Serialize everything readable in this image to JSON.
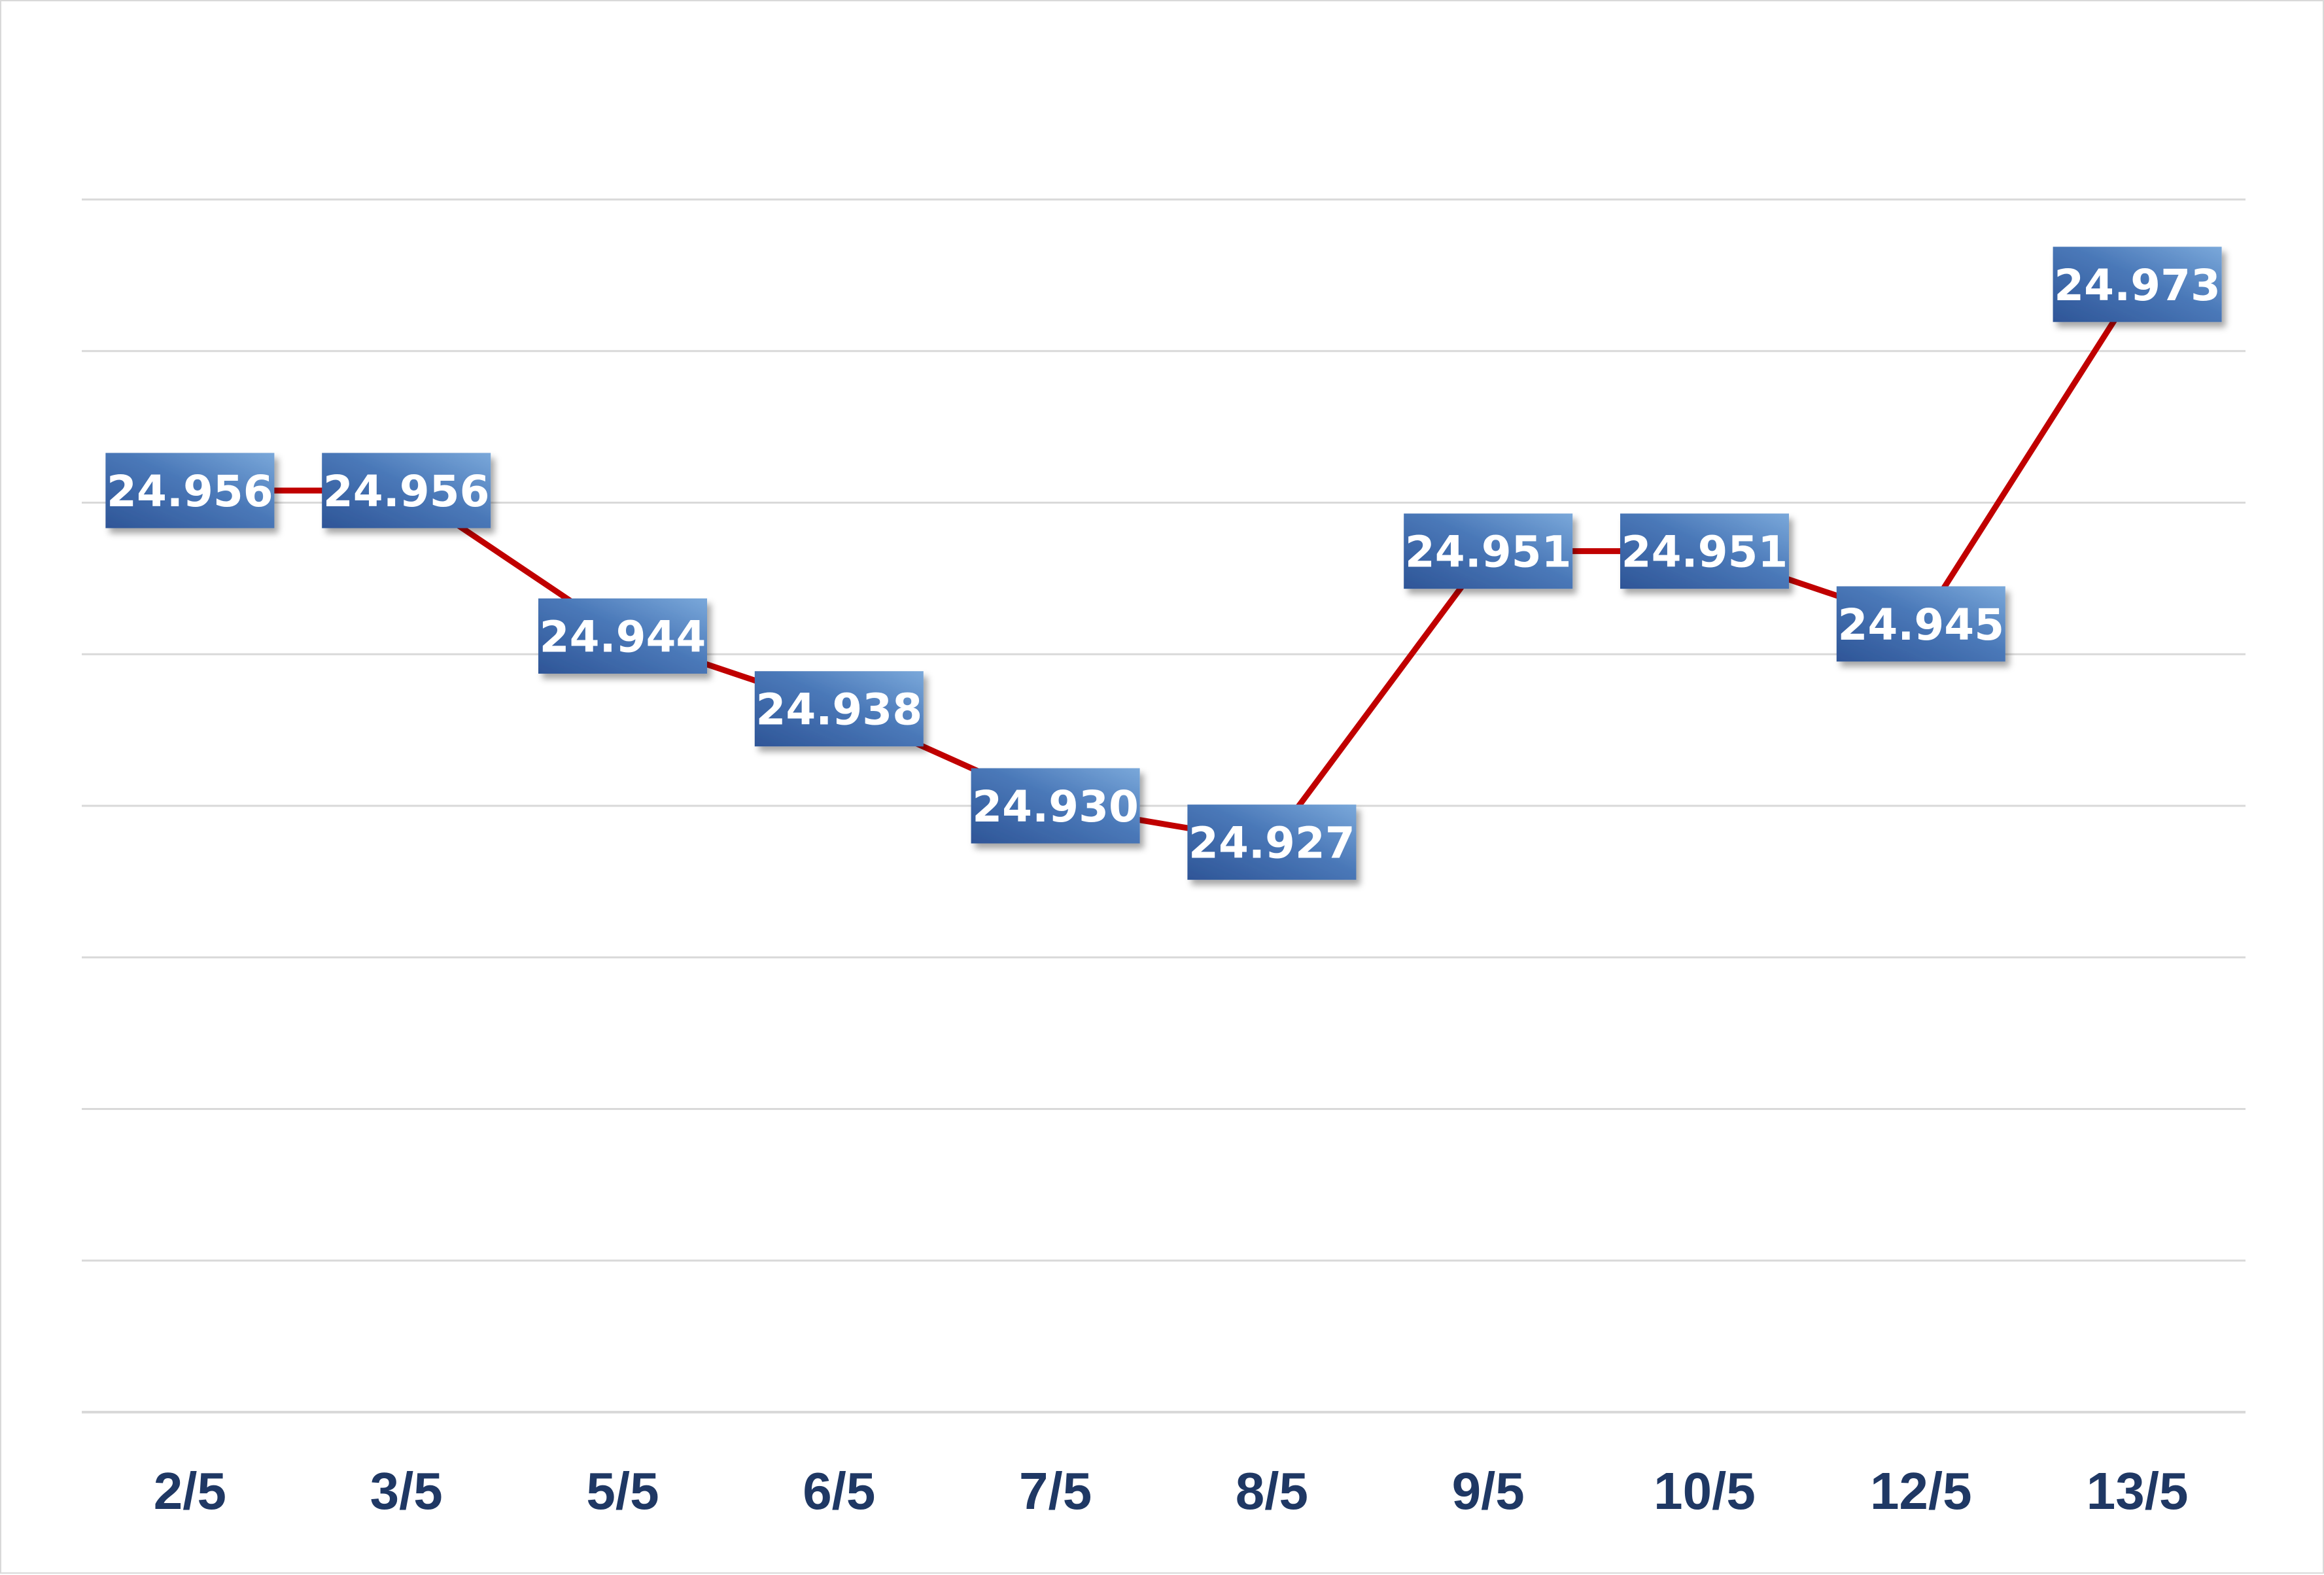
{
  "chart_data": {
    "type": "line",
    "title": "",
    "xlabel": "",
    "ylabel": "",
    "categories": [
      "2/5",
      "3/5",
      "5/5",
      "6/5",
      "7/5",
      "8/5",
      "9/5",
      "10/5",
      "12/5",
      "13/5"
    ],
    "series": [
      {
        "values": [
          24956,
          24956,
          24944,
          24938,
          24930,
          24927,
          24951,
          24951,
          24945,
          24973
        ],
        "labels": [
          "24.956",
          "24.956",
          "24.944",
          "24.938",
          "24.930",
          "24.927",
          "24.951",
          "24.951",
          "24.945",
          "24.973"
        ]
      }
    ],
    "ylim": [
      24880,
      24980
    ],
    "grid": true,
    "legend": "none",
    "colors": {
      "line": "#c00000",
      "label_box_dark": "#2e5597",
      "label_box_light": "#6e9fd4",
      "label_text": "#ffffff",
      "tick_text": "#1f3864",
      "grid": "#d9d9d9"
    }
  }
}
